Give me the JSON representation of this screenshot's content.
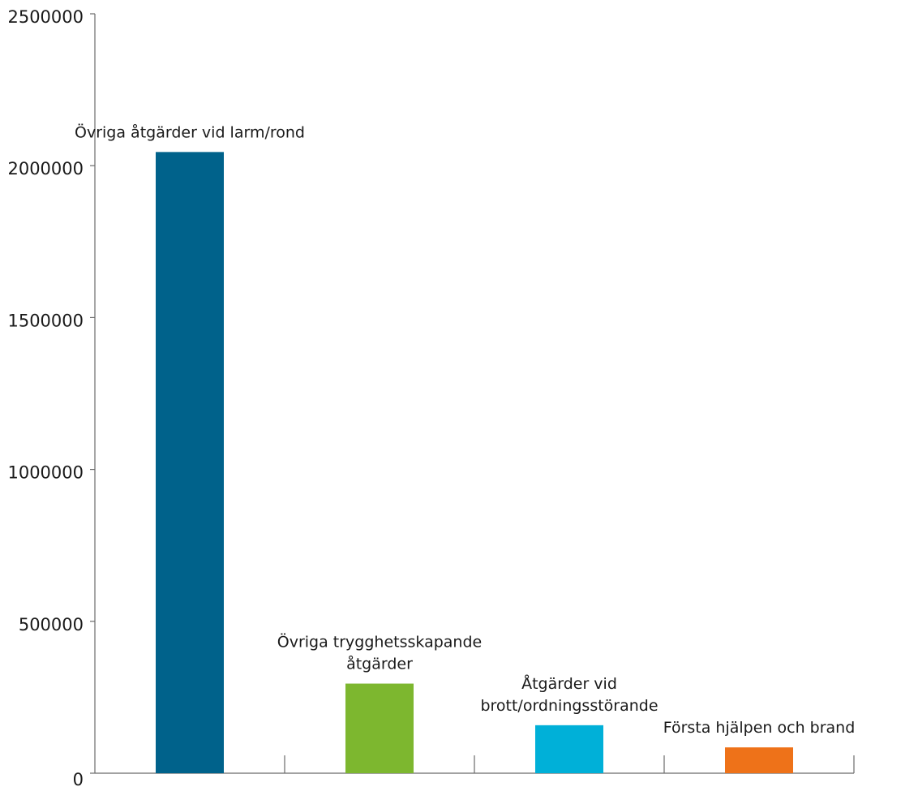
{
  "chart_data": {
    "type": "bar",
    "title": "",
    "xlabel": "",
    "ylabel": "",
    "ylim": [
      0,
      2500000
    ],
    "yticks": [
      "0",
      "500000",
      "1000000",
      "1500000",
      "2000000",
      "2500000"
    ],
    "grid": false,
    "legend": "none",
    "categories": [
      [
        "Övriga åtgärder vid larm/rond"
      ],
      [
        "Övriga trygghetsskapande",
        "åtgärder"
      ],
      [
        "Åtgärder vid",
        "brott/ordningsstörande"
      ],
      [
        "Första hjälpen och brand"
      ]
    ],
    "values": [
      2045000,
      295000,
      158000,
      85000
    ],
    "colors": [
      "#00628b",
      "#7db72f",
      "#00b0d8",
      "#ee7219"
    ]
  }
}
